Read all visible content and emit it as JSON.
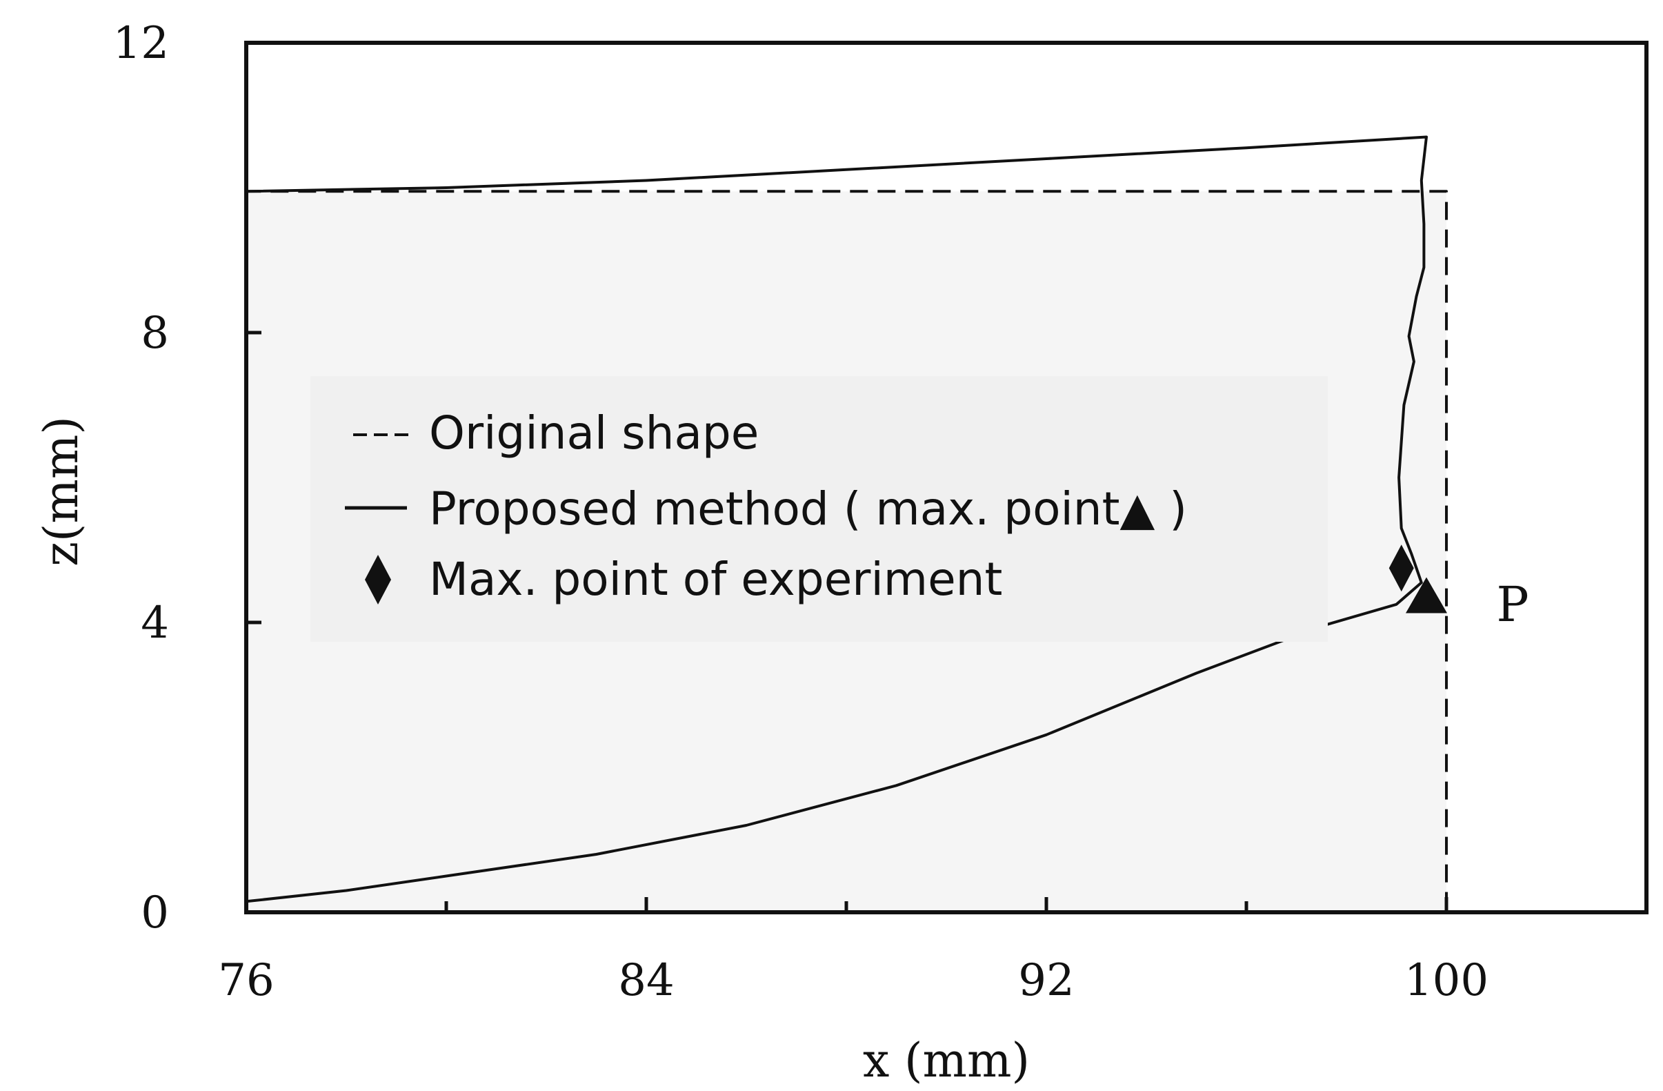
{
  "chart_data": {
    "type": "line",
    "xlabel": "x (mm)",
    "ylabel": "z(mm)",
    "xlim": [
      76,
      104
    ],
    "ylim": [
      0,
      12
    ],
    "x_ticks": [
      76,
      84,
      92,
      100
    ],
    "x_minor_ticks": [
      80,
      88,
      96
    ],
    "y_ticks": [
      0,
      4,
      8,
      12
    ],
    "grid": false,
    "legend_position": "center-left",
    "series": [
      {
        "name": "Original shape",
        "style": "dashed",
        "color": "#111111",
        "points": [
          [
            76,
            0
          ],
          [
            76,
            9.95
          ],
          [
            100,
            9.95
          ],
          [
            100,
            0
          ]
        ]
      },
      {
        "name": "Proposed method ( max. point▲ )",
        "style": "solid",
        "color": "#111111",
        "points": [
          [
            76,
            0.15
          ],
          [
            78,
            0.3
          ],
          [
            80,
            0.5
          ],
          [
            83,
            0.8
          ],
          [
            86,
            1.2
          ],
          [
            89,
            1.75
          ],
          [
            92,
            2.45
          ],
          [
            95,
            3.3
          ],
          [
            97.5,
            3.95
          ],
          [
            99,
            4.25
          ],
          [
            99.5,
            4.55
          ],
          [
            99.3,
            4.95
          ],
          [
            99.1,
            5.3
          ],
          [
            99.05,
            6.0
          ],
          [
            99.15,
            7.0
          ],
          [
            99.35,
            7.6
          ],
          [
            99.25,
            7.95
          ],
          [
            99.4,
            8.5
          ],
          [
            99.55,
            8.9
          ],
          [
            99.55,
            9.5
          ],
          [
            99.5,
            10.1
          ],
          [
            99.6,
            10.7
          ],
          [
            96,
            10.55
          ],
          [
            92,
            10.4
          ],
          [
            88,
            10.25
          ],
          [
            84,
            10.1
          ],
          [
            80,
            10.0
          ],
          [
            76,
            9.95
          ]
        ]
      }
    ],
    "markers": [
      {
        "name": "Max. point of experiment",
        "shape": "diamond",
        "x": 99.1,
        "y": 4.75
      },
      {
        "name": "Proposed method max. point",
        "shape": "triangle",
        "x": 99.6,
        "y": 4.3
      }
    ],
    "annotations": [
      {
        "text": "P",
        "x": 101.0,
        "y": 4.25
      }
    ],
    "legend": {
      "items": [
        {
          "symbol": "dashed",
          "label": "Original shape"
        },
        {
          "symbol": "solid",
          "label": "Proposed method ( max. point▲ )"
        },
        {
          "symbol": "diamond",
          "label": "Max. point of experiment"
        }
      ]
    },
    "colors": {
      "plot_fill": "#f5f5f5",
      "ink": "#111111"
    }
  }
}
